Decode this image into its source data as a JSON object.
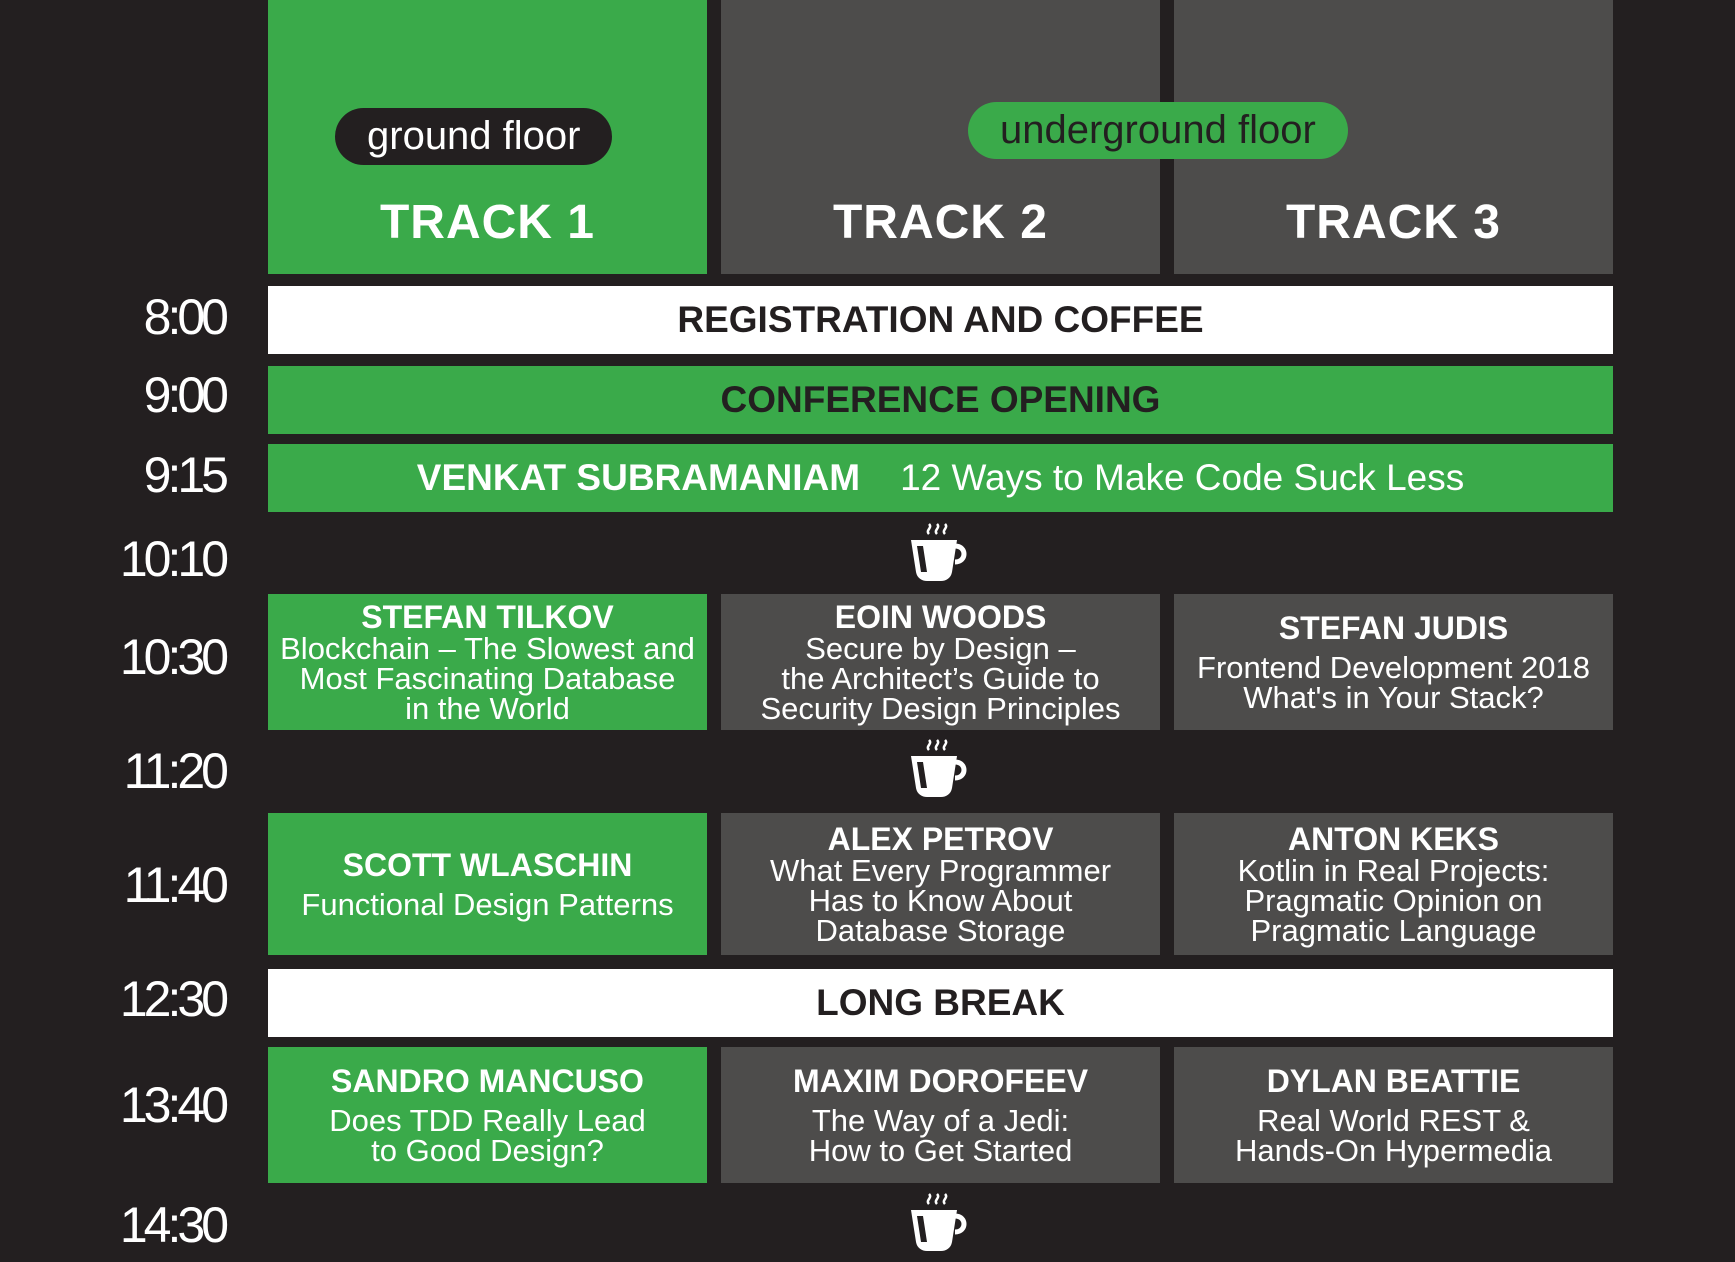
{
  "header": {
    "floors": {
      "ground": "ground floor",
      "underground": "underground floor"
    },
    "tracks": [
      "TRACK 1",
      "TRACK 2",
      "TRACK 3"
    ]
  },
  "schedule": {
    "registration": {
      "time": "8:00",
      "title": "REGISTRATION AND COFFEE"
    },
    "opening": {
      "time": "9:00",
      "title": "CONFERENCE OPENING"
    },
    "keynote": {
      "time": "9:15",
      "speaker": "VENKAT SUBRAMANIAM",
      "talk": "12 Ways to Make Code Suck Less"
    },
    "break1": {
      "time": "10:10",
      "icon": "coffee-cup-icon"
    },
    "slot1": {
      "time": "10:30",
      "sessions": [
        {
          "speaker": "STEFAN TILKOV",
          "talk": "Blockchain – The Slowest and\nMost Fascinating Database\nin the World"
        },
        {
          "speaker": "EOIN WOODS",
          "talk": "Secure by Design –\nthe Architect’s Guide to\nSecurity Design Principles"
        },
        {
          "speaker": "STEFAN JUDIS",
          "talk": "Frontend Development 2018\nWhat's in Your Stack?"
        }
      ]
    },
    "break2": {
      "time": "11:20",
      "icon": "coffee-cup-icon"
    },
    "slot2": {
      "time": "11:40",
      "sessions": [
        {
          "speaker": "SCOTT WLASCHIN",
          "talk": "Functional Design Patterns"
        },
        {
          "speaker": "ALEX PETROV",
          "talk": "What Every Programmer\nHas to Know About\nDatabase Storage"
        },
        {
          "speaker": "ANTON KEKS",
          "talk": "Kotlin in Real Projects:\nPragmatic Opinion on\nPragmatic Language"
        }
      ]
    },
    "longbreak": {
      "time": "12:30",
      "title": "LONG BREAK"
    },
    "slot3": {
      "time": "13:40",
      "sessions": [
        {
          "speaker": "SANDRO MANCUSO",
          "talk": "Does TDD Really Lead\nto Good Design?"
        },
        {
          "speaker": "MAXIM DOROFEEV",
          "talk": "The Way of a Jedi:\nHow to Get Started"
        },
        {
          "speaker": "DYLAN BEATTIE",
          "talk": "Real World REST &\nHands-On Hypermedia"
        }
      ]
    },
    "break3": {
      "time": "14:30",
      "icon": "coffee-cup-icon"
    }
  },
  "colors": {
    "background": "#231f20",
    "green": "#3aaa4a",
    "grey": "#4d4c4b",
    "white": "#ffffff"
  }
}
